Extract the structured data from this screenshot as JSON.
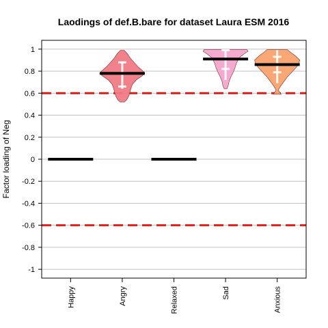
{
  "chart_data": {
    "type": "violin",
    "title": "Laodings of def.B.bare for dataset Laura ESM 2016",
    "xlabel": "",
    "ylabel": "Factor loading of Neg",
    "ylim": [
      -1.08,
      1.08
    ],
    "y_ticks": [
      1,
      0.8,
      0.6,
      0.4,
      0.2,
      0,
      -0.2,
      -0.4,
      -0.6,
      -0.8,
      -1
    ],
    "y_tick_labels": [
      "1",
      "0.8",
      "0.6",
      "0.4",
      "0.2",
      "0",
      "-0.2",
      "-0.4",
      "-0.6",
      "-0.8",
      "-1"
    ],
    "grid": true,
    "reference_lines": [
      0.6,
      -0.6
    ],
    "categories": [
      "Happy",
      "Angry",
      "Relaxed",
      "Sad",
      "Anxious"
    ],
    "series": [
      {
        "category": "Happy",
        "median": 0,
        "color": null,
        "violin": null,
        "box": null
      },
      {
        "category": "Angry",
        "median": 0.78,
        "color": "#f07a84",
        "box": {
          "q1": 0.66,
          "q3": 0.88,
          "whisker_low": 0.64,
          "whisker_high": 0.88
        },
        "violin": [
          {
            "y": 0.52,
            "w": 0.1
          },
          {
            "y": 0.54,
            "w": 0.2
          },
          {
            "y": 0.57,
            "w": 0.28
          },
          {
            "y": 0.6,
            "w": 0.33
          },
          {
            "y": 0.64,
            "w": 0.38
          },
          {
            "y": 0.68,
            "w": 0.45
          },
          {
            "y": 0.72,
            "w": 0.62
          },
          {
            "y": 0.76,
            "w": 0.9
          },
          {
            "y": 0.78,
            "w": 1.0
          },
          {
            "y": 0.8,
            "w": 0.92
          },
          {
            "y": 0.84,
            "w": 0.7
          },
          {
            "y": 0.88,
            "w": 0.52
          },
          {
            "y": 0.92,
            "w": 0.35
          },
          {
            "y": 0.96,
            "w": 0.22
          },
          {
            "y": 0.99,
            "w": 0.08
          }
        ]
      },
      {
        "category": "Relaxed",
        "median": 0,
        "color": null,
        "violin": null,
        "box": null
      },
      {
        "category": "Sad",
        "median": 0.91,
        "color": "#f4a6cc",
        "box": {
          "q1": 0.82,
          "q3": 0.99,
          "whisker_low": 0.72,
          "whisker_high": 0.99
        },
        "violin": [
          {
            "y": 0.64,
            "w": 0.06
          },
          {
            "y": 0.67,
            "w": 0.12
          },
          {
            "y": 0.71,
            "w": 0.16
          },
          {
            "y": 0.75,
            "w": 0.24
          },
          {
            "y": 0.79,
            "w": 0.34
          },
          {
            "y": 0.83,
            "w": 0.42
          },
          {
            "y": 0.87,
            "w": 0.48
          },
          {
            "y": 0.9,
            "w": 0.55
          },
          {
            "y": 0.93,
            "w": 0.65
          },
          {
            "y": 0.96,
            "w": 0.85
          },
          {
            "y": 0.98,
            "w": 1.0
          },
          {
            "y": 0.995,
            "w": 0.95
          }
        ]
      },
      {
        "category": "Anxious",
        "median": 0.86,
        "color": "#f9a36e",
        "box": {
          "q1": 0.79,
          "q3": 0.93,
          "whisker_low": 0.69,
          "whisker_high": 0.99
        },
        "violin": [
          {
            "y": 0.59,
            "w": 0.18
          },
          {
            "y": 0.61,
            "w": 0.1
          },
          {
            "y": 0.63,
            "w": 0.05
          },
          {
            "y": 0.66,
            "w": 0.14
          },
          {
            "y": 0.7,
            "w": 0.28
          },
          {
            "y": 0.74,
            "w": 0.42
          },
          {
            "y": 0.78,
            "w": 0.6
          },
          {
            "y": 0.82,
            "w": 0.78
          },
          {
            "y": 0.86,
            "w": 0.95
          },
          {
            "y": 0.9,
            "w": 1.0
          },
          {
            "y": 0.94,
            "w": 0.8
          },
          {
            "y": 0.97,
            "w": 0.6
          },
          {
            "y": 0.995,
            "w": 0.45
          }
        ]
      }
    ]
  }
}
